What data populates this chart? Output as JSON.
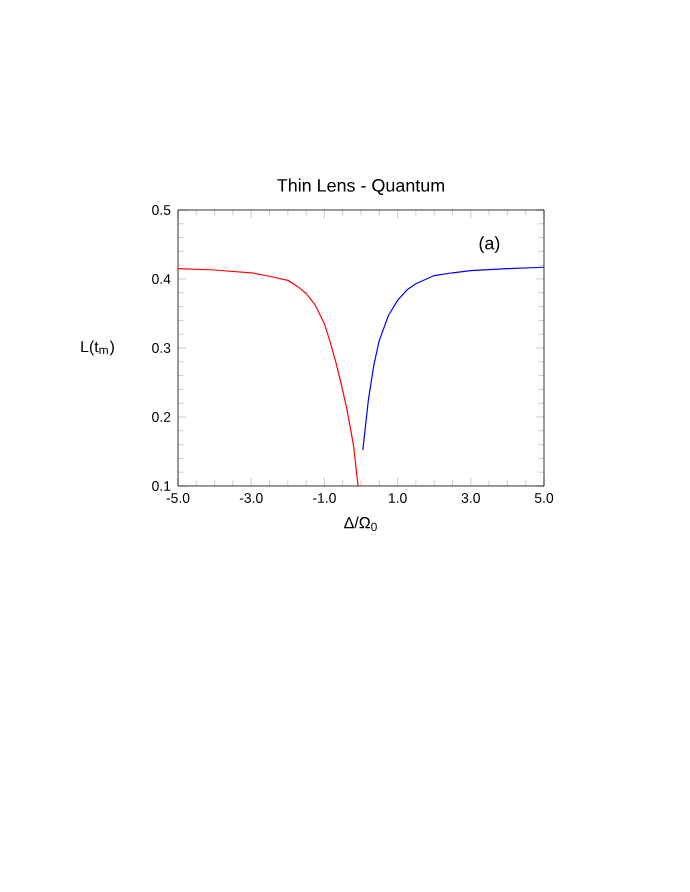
{
  "chart_data": {
    "type": "line",
    "title": "Thin Lens - Quantum",
    "xlabel": "Δ/Ω$_{0}$",
    "ylabel": "L(t$_{m}$)",
    "annotations": [
      "(a)"
    ],
    "xlim": [
      -5,
      5
    ],
    "ylim": [
      0.1,
      0.5
    ],
    "xticks": [
      {
        "value": -5,
        "label": "-5.0"
      },
      {
        "value": -3,
        "label": "-3.0"
      },
      {
        "value": -1,
        "label": "-1.0"
      },
      {
        "value": 1,
        "label": "1.0"
      },
      {
        "value": 3,
        "label": "3.0"
      },
      {
        "value": 5,
        "label": "5.0"
      }
    ],
    "yticks": [
      0.1,
      0.2,
      0.3,
      0.4,
      0.5
    ],
    "marker": "none",
    "line_style": "solid",
    "series": [
      {
        "color": "#ff0000",
        "x": [
          -5,
          -4,
          -3,
          -2.5,
          -2,
          -1.75,
          -1.5,
          -1.25,
          -1,
          -0.85,
          -0.7,
          -0.55,
          -0.4,
          -0.3,
          -0.2,
          -0.08
        ],
        "values": [
          0.415,
          0.413,
          0.409,
          0.404,
          0.398,
          0.39,
          0.379,
          0.362,
          0.335,
          0.31,
          0.282,
          0.25,
          0.215,
          0.187,
          0.157,
          0.1
        ]
      },
      {
        "color": "#0000ff",
        "x": [
          0.05,
          0.2,
          0.35,
          0.5,
          0.75,
          1,
          1.25,
          1.5,
          2,
          2.5,
          3,
          4,
          5
        ],
        "values": [
          0.152,
          0.224,
          0.275,
          0.311,
          0.347,
          0.369,
          0.384,
          0.393,
          0.405,
          0.409,
          0.412,
          0.415,
          0.417
        ]
      }
    ]
  }
}
